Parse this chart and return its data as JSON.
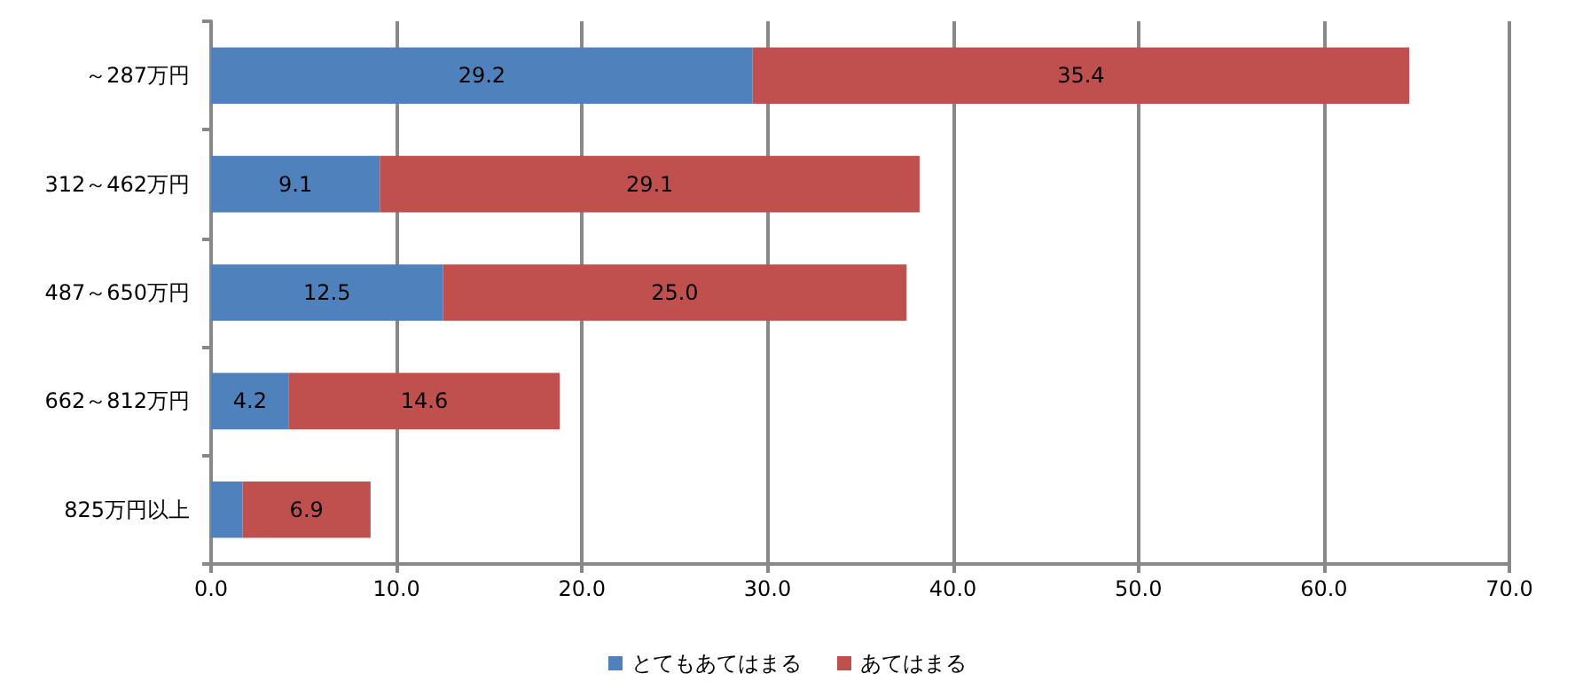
{
  "chart_data": {
    "type": "bar",
    "orientation": "horizontal",
    "stacked": true,
    "categories": [
      "～287万円",
      "312～462万円",
      "487～650万円",
      "662～812万円",
      "825万円以上"
    ],
    "series": [
      {
        "name": "とてもあてはまる",
        "color": "#4f81bd",
        "values": [
          29.2,
          9.1,
          12.5,
          4.2,
          1.7
        ],
        "value_labels": [
          "29.2",
          "9.1",
          "12.5",
          "4.2",
          null
        ]
      },
      {
        "name": "あてはまる",
        "color": "#c0504d",
        "values": [
          35.4,
          29.1,
          25.0,
          14.6,
          6.9
        ],
        "value_labels": [
          "35.4",
          "29.1",
          "25.0",
          "14.6",
          "6.9"
        ]
      }
    ],
    "xlim": [
      0,
      70
    ],
    "xticks": [
      {
        "value": 0,
        "label": "0.0"
      },
      {
        "value": 10,
        "label": "10.0"
      },
      {
        "value": 20,
        "label": "20.0"
      },
      {
        "value": 30,
        "label": "30.0"
      },
      {
        "value": 40,
        "label": "40.0"
      },
      {
        "value": 50,
        "label": "50.0"
      },
      {
        "value": 60,
        "label": "60.0"
      },
      {
        "value": 70,
        "label": "70.0"
      }
    ],
    "grid": "x",
    "legend": "bottom"
  }
}
